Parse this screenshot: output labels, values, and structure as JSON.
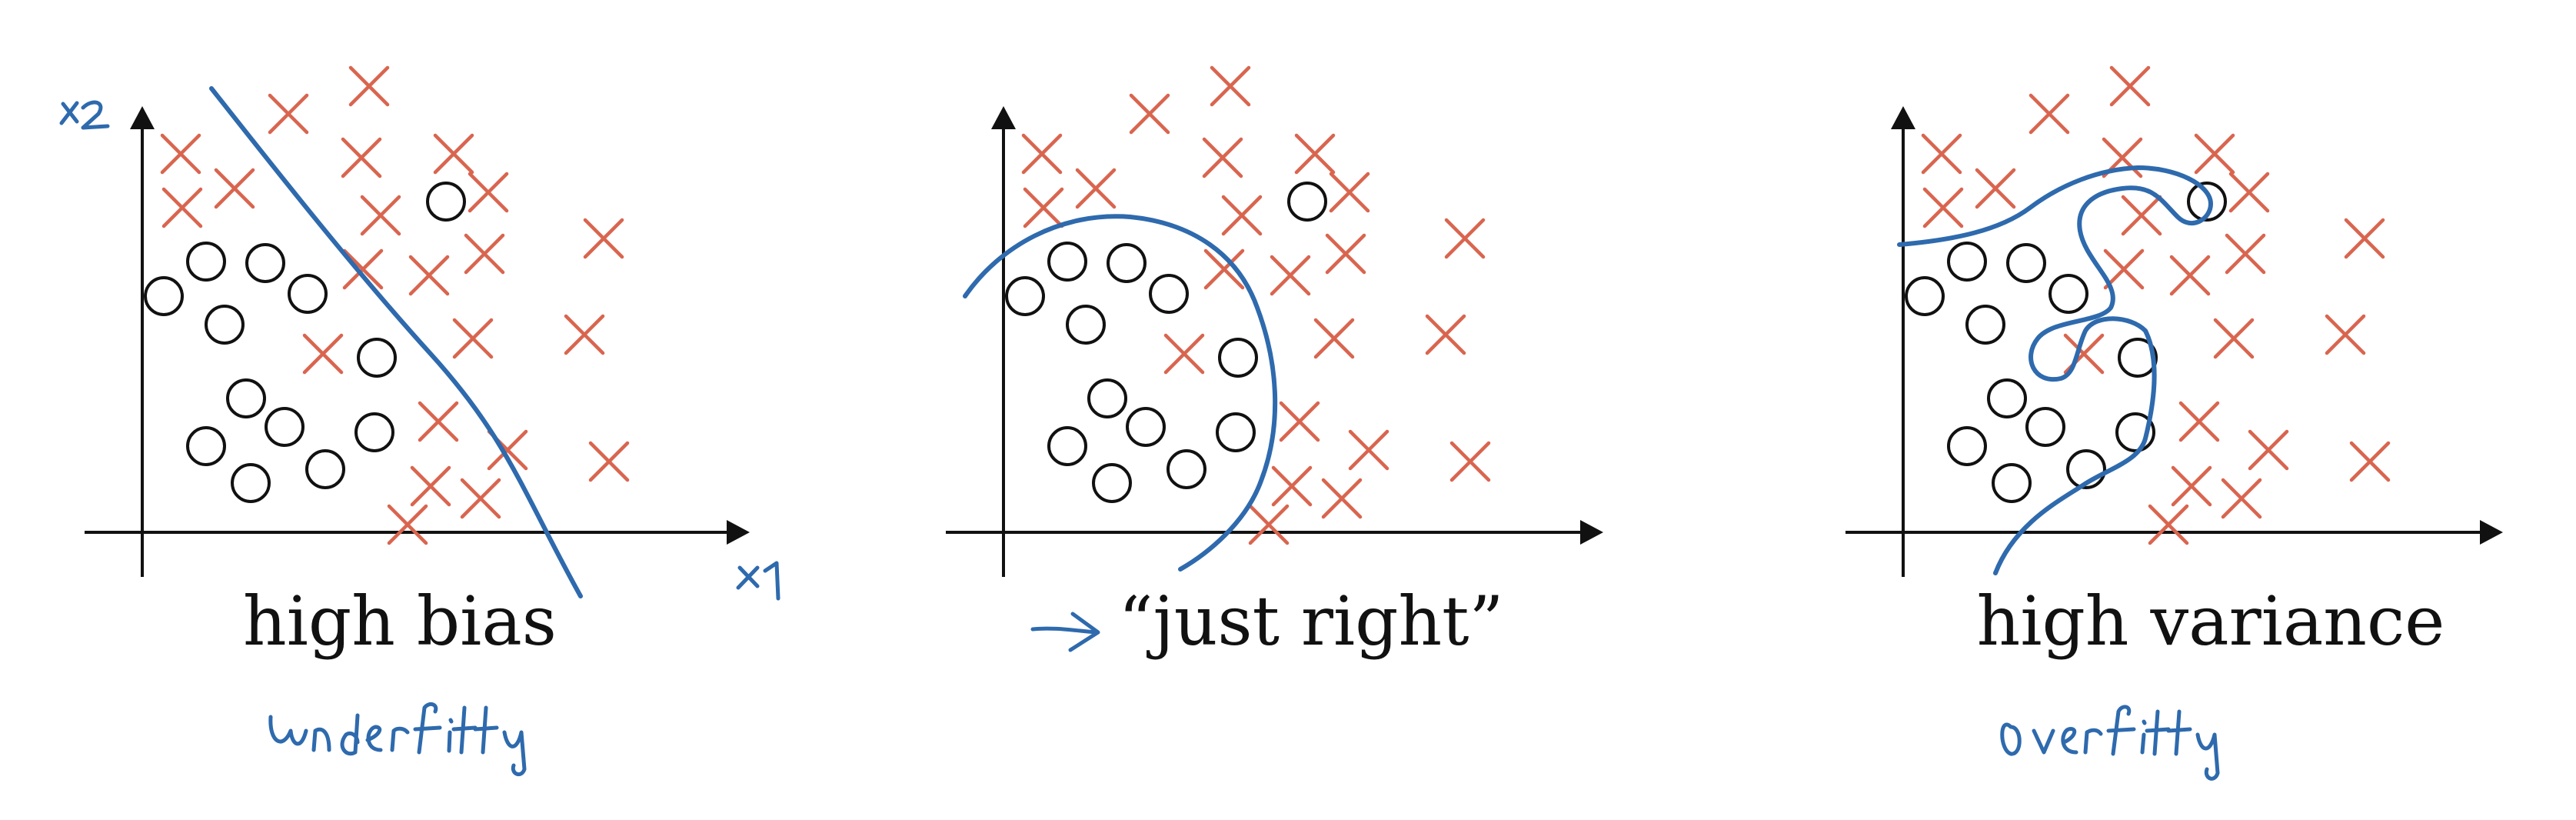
{
  "panels": [
    {
      "id": "high-bias",
      "caption": "high bias",
      "annotation": "underfitting",
      "x_axis_label": "x1",
      "y_axis_label": "x2"
    },
    {
      "id": "just-right",
      "caption": "“just right”",
      "annotation_arrow": "arrow pointing to caption"
    },
    {
      "id": "high-variance",
      "caption": "high variance",
      "annotation": "overfitting"
    }
  ],
  "colors": {
    "x_class": "#d9654f",
    "o_class": "#111111",
    "decision_boundary": "#2e6aad",
    "axis": "#111111"
  }
}
